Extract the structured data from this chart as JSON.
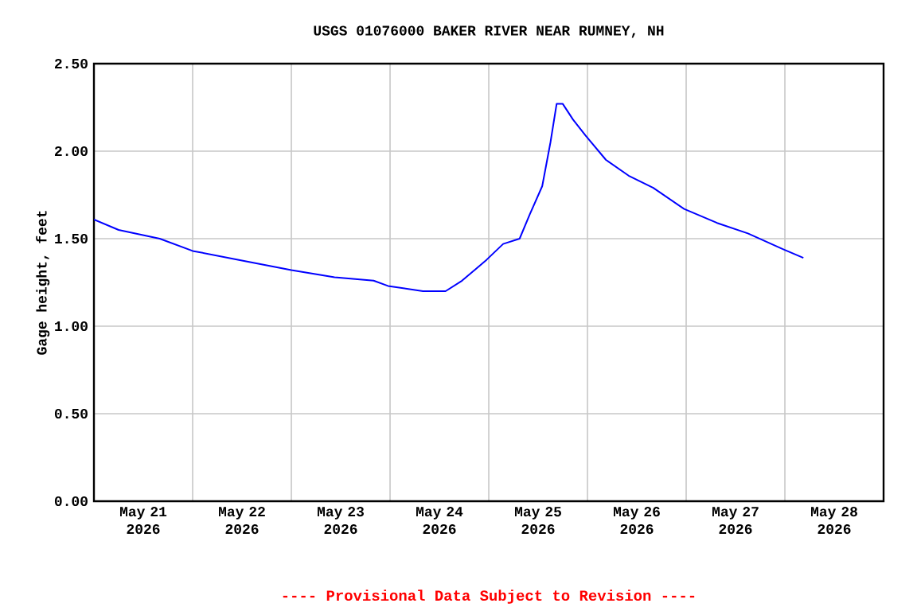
{
  "chart_data": {
    "type": "line",
    "title": "USGS 01076000 BAKER RIVER NEAR RUMNEY, NH",
    "ylabel": "Gage height, feet",
    "annotations": [
      "---- Provisional Data Subject to Revision ----"
    ],
    "x": [
      "2026-05-21T00:00",
      "2026-05-21T06:00",
      "2026-05-21T16:00",
      "2026-05-22T00:00",
      "2026-05-22T11:00",
      "2026-05-23T00:00",
      "2026-05-23T10:30",
      "2026-05-23T20:00",
      "2026-05-23T23:30",
      "2026-05-24T08:00",
      "2026-05-24T13:30",
      "2026-05-24T17:30",
      "2026-05-24T21:00",
      "2026-05-24T23:30",
      "2026-05-25T03:30",
      "2026-05-25T07:30",
      "2026-05-25T10:00",
      "2026-05-25T13:00",
      "2026-05-25T15:00",
      "2026-05-25T16:30",
      "2026-05-25T18:00",
      "2026-05-25T20:30",
      "2026-05-25T23:30",
      "2026-05-26T04:30",
      "2026-05-26T10:00",
      "2026-05-26T16:00",
      "2026-05-26T23:30",
      "2026-05-27T07:30",
      "2026-05-27T15:00",
      "2026-05-27T23:30",
      "2026-05-28T04:30"
    ],
    "series": [
      {
        "color": "#0000ff",
        "values": [
          1.61,
          1.55,
          1.5,
          1.43,
          1.38,
          1.32,
          1.28,
          1.26,
          1.23,
          1.2,
          1.2,
          1.26,
          1.33,
          1.38,
          1.47,
          1.5,
          1.64,
          1.8,
          2.05,
          2.27,
          2.27,
          2.18,
          2.09,
          1.95,
          1.86,
          1.79,
          1.67,
          1.59,
          1.53,
          1.44,
          1.39
        ]
      }
    ],
    "xlim": [
      "2026-05-21T00:00",
      "2026-05-29T00:00"
    ],
    "xticks": [
      {
        "value": "2026-05-21T00:00",
        "label": null
      },
      {
        "value": "2026-05-22T00:00",
        "label": null
      },
      {
        "value": "2026-05-23T00:00",
        "label": null
      },
      {
        "value": "2026-05-24T00:00",
        "label": null
      },
      {
        "value": "2026-05-25T00:00",
        "label": null
      },
      {
        "value": "2026-05-26T00:00",
        "label": null
      },
      {
        "value": "2026-05-27T00:00",
        "label": null
      },
      {
        "value": "2026-05-28T00:00",
        "label": null
      },
      {
        "value": "2026-05-29T00:00",
        "label": null
      },
      {
        "value": "2026-05-21T12:00",
        "label": "May 21 2026"
      },
      {
        "value": "2026-05-22T12:00",
        "label": "May 22 2026"
      },
      {
        "value": "2026-05-23T12:00",
        "label": "May 23 2026"
      },
      {
        "value": "2026-05-24T12:00",
        "label": "May 24 2026"
      },
      {
        "value": "2026-05-25T12:00",
        "label": "May 25 2026"
      },
      {
        "value": "2026-05-26T12:00",
        "label": "May 26 2026"
      },
      {
        "value": "2026-05-27T12:00",
        "label": "May 27 2026"
      },
      {
        "value": "2026-05-28T12:00",
        "label": "May 28 2026"
      }
    ],
    "ylim": [
      0,
      2.5
    ],
    "yticks": [
      {
        "value": 0,
        "label": "0.00"
      },
      {
        "value": 0.5,
        "label": "0.50"
      },
      {
        "value": 1,
        "label": "1.00"
      },
      {
        "value": 1.5,
        "label": "1.50"
      },
      {
        "value": 2,
        "label": "2.00"
      },
      {
        "value": 2.5,
        "label": "2.50"
      }
    ],
    "grid": true
  }
}
